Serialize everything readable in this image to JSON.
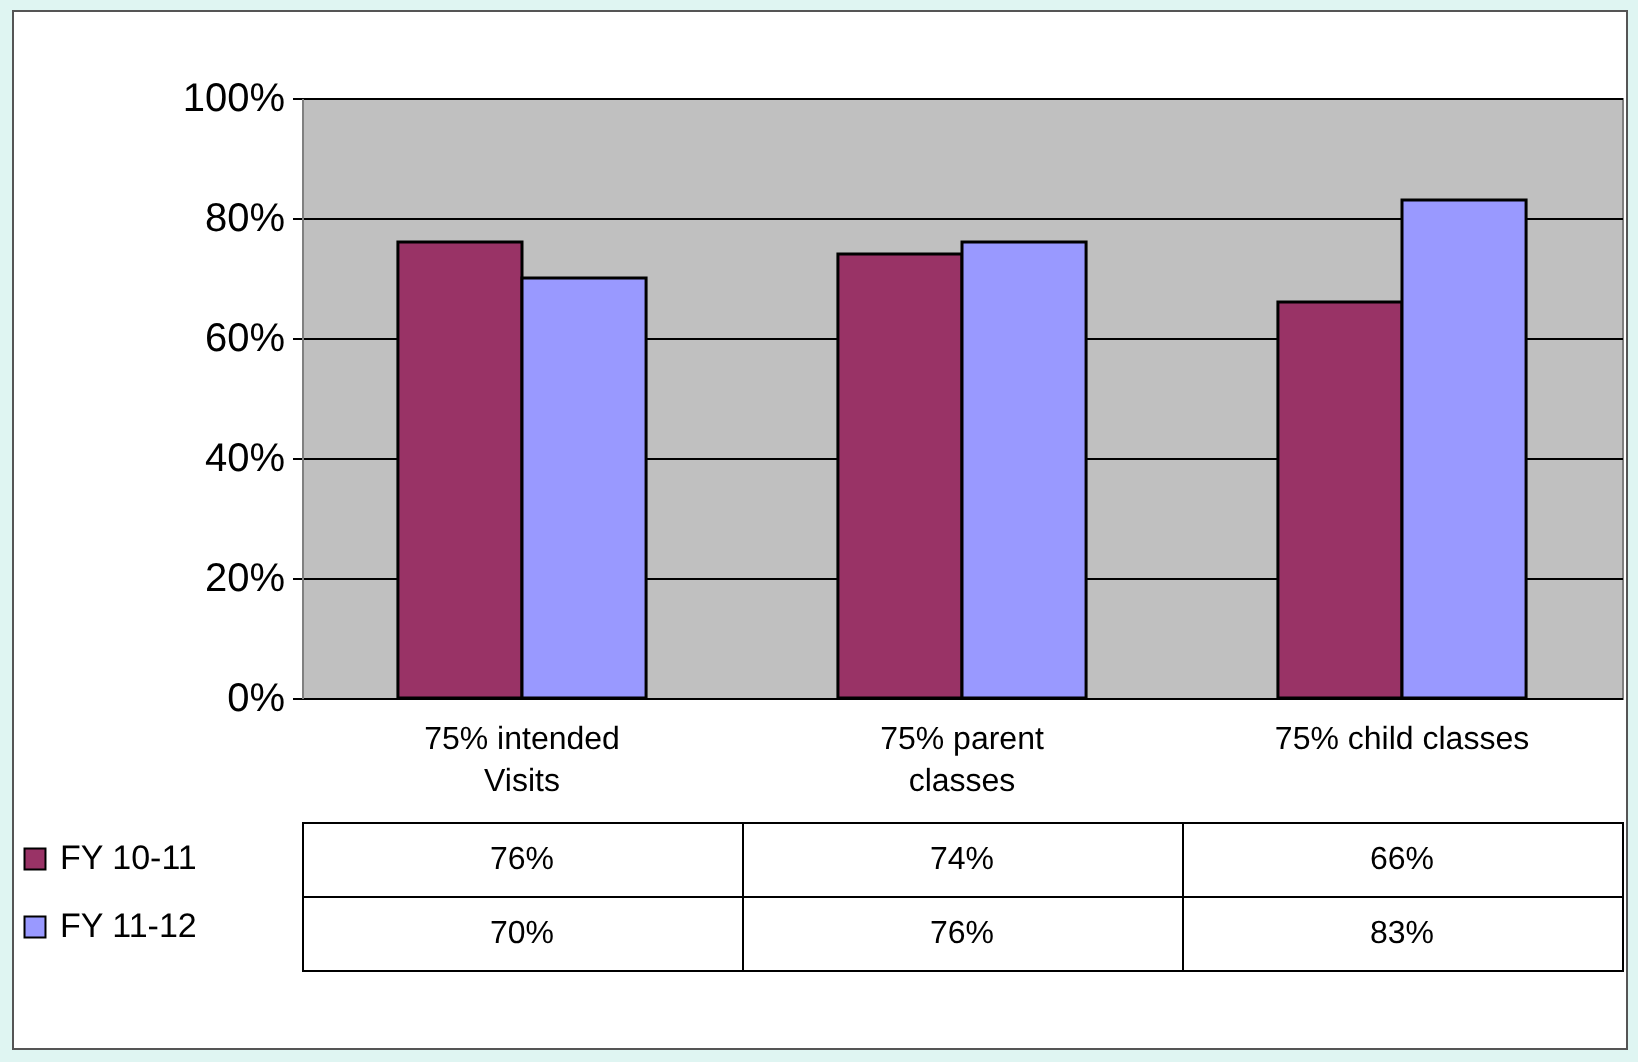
{
  "chart_data": {
    "type": "bar",
    "categories": [
      "75% intended Visits",
      "75% parent classes",
      "75% child classes"
    ],
    "series": [
      {
        "name": "FY 10-11",
        "color": "#993366",
        "values": [
          76,
          74,
          66
        ],
        "value_labels": [
          "76%",
          "74%",
          "66%"
        ]
      },
      {
        "name": "FY 11-12",
        "color": "#9999ff",
        "values": [
          70,
          76,
          83
        ],
        "value_labels": [
          "70%",
          "76%",
          "83%"
        ]
      }
    ],
    "ylim": [
      0,
      100
    ],
    "yticks": [
      {
        "value": 0,
        "label": "0%"
      },
      {
        "value": 20,
        "label": "20%"
      },
      {
        "value": 40,
        "label": "40%"
      },
      {
        "value": 60,
        "label": "60%"
      },
      {
        "value": 80,
        "label": "80%"
      },
      {
        "value": 100,
        "label": "100%"
      }
    ],
    "grid": "y",
    "legend": "left"
  }
}
